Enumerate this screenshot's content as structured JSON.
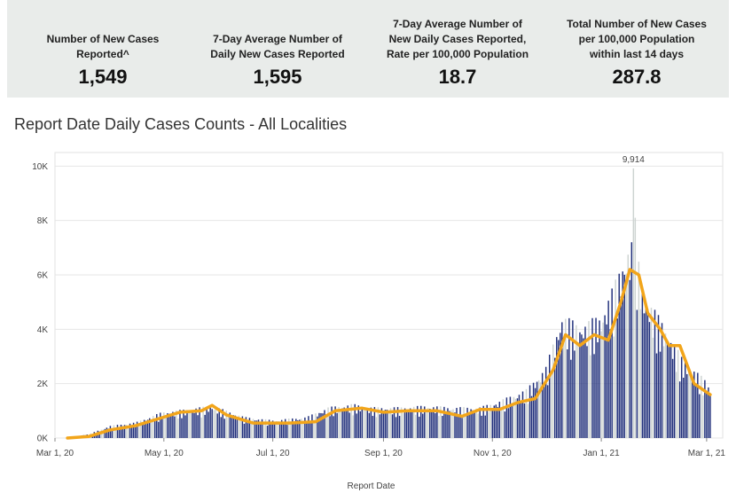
{
  "kpis": [
    {
      "label": "Number of New Cases\nReported^",
      "value": "1,549"
    },
    {
      "label": "7-Day Average Number of\nDaily New Cases Reported",
      "value": "1,595"
    },
    {
      "label": "7-Day Average Number of\nNew Daily Cases Reported,\nRate per 100,000 Population",
      "value": "18.7"
    },
    {
      "label": "Total Number of New Cases\nper 100,000 Population\nwithin last 14 days",
      "value": "287.8"
    }
  ],
  "chart_data": {
    "type": "bar",
    "title": "Report Date Daily Cases Counts - All Localities",
    "xlabel": "Report Date",
    "ylabel": "",
    "x_ticks": [
      "Mar 1, 20",
      "May 1, 20",
      "Jul 1, 20",
      "Sep 1, 20",
      "Nov 1, 20",
      "Jan 1, 21",
      "Mar 1, 21"
    ],
    "y_ticks": [
      "0K",
      "2K",
      "4K",
      "6K",
      "8K",
      "10K"
    ],
    "ylim": [
      0,
      10500
    ],
    "x_range": [
      "2020-03-01",
      "2021-03-10"
    ],
    "annotation": {
      "label": "9,914",
      "date": "2021-01-19",
      "value": 9914
    },
    "colors": {
      "weekday_bar": "#1f2e7a",
      "weekend_bar": "#cdd3d1",
      "average_line": "#f2a51a"
    },
    "series": [
      {
        "name": "",
        "kind": "bar",
        "start_date": "2020-03-08",
        "anchors": [
          [
            "2020-03-08",
            20
          ],
          [
            "2020-03-20",
            120
          ],
          [
            "2020-04-01",
            380
          ],
          [
            "2020-04-15",
            480
          ],
          [
            "2020-04-30",
            800
          ],
          [
            "2020-05-15",
            900
          ],
          [
            "2020-05-28",
            1000
          ],
          [
            "2020-06-05",
            850
          ],
          [
            "2020-06-15",
            650
          ],
          [
            "2020-07-01",
            550
          ],
          [
            "2020-07-20",
            650
          ],
          [
            "2020-08-01",
            950
          ],
          [
            "2020-08-15",
            1050
          ],
          [
            "2020-08-25",
            950
          ],
          [
            "2020-09-10",
            950
          ],
          [
            "2020-09-25",
            1000
          ],
          [
            "2020-10-10",
            950
          ],
          [
            "2020-10-25",
            950
          ],
          [
            "2020-11-05",
            1150
          ],
          [
            "2020-11-20",
            1500
          ],
          [
            "2020-12-01",
            2200
          ],
          [
            "2020-12-10",
            3800
          ],
          [
            "2020-12-20",
            3500
          ],
          [
            "2021-01-01",
            3800
          ],
          [
            "2021-01-10",
            5000
          ],
          [
            "2021-01-19",
            6400
          ],
          [
            "2021-01-25",
            4500
          ],
          [
            "2021-02-05",
            3500
          ],
          [
            "2021-02-15",
            2500
          ],
          [
            "2021-02-28",
            1800
          ],
          [
            "2021-03-03",
            1549
          ]
        ]
      },
      {
        "name": "",
        "kind": "line",
        "points": [
          [
            "2020-03-08",
            0
          ],
          [
            "2020-03-20",
            60
          ],
          [
            "2020-04-01",
            300
          ],
          [
            "2020-04-15",
            450
          ],
          [
            "2020-04-30",
            750
          ],
          [
            "2020-05-10",
            950
          ],
          [
            "2020-05-22",
            1000
          ],
          [
            "2020-05-28",
            1200
          ],
          [
            "2020-06-05",
            850
          ],
          [
            "2020-06-20",
            550
          ],
          [
            "2020-07-10",
            550
          ],
          [
            "2020-07-25",
            600
          ],
          [
            "2020-08-05",
            1000
          ],
          [
            "2020-08-20",
            1100
          ],
          [
            "2020-09-01",
            950
          ],
          [
            "2020-09-15",
            1000
          ],
          [
            "2020-10-01",
            1000
          ],
          [
            "2020-10-15",
            800
          ],
          [
            "2020-10-25",
            1050
          ],
          [
            "2020-11-05",
            1050
          ],
          [
            "2020-11-15",
            1300
          ],
          [
            "2020-11-25",
            1450
          ],
          [
            "2020-12-05",
            2500
          ],
          [
            "2020-12-12",
            3800
          ],
          [
            "2020-12-20",
            3400
          ],
          [
            "2020-12-28",
            3800
          ],
          [
            "2021-01-05",
            3600
          ],
          [
            "2021-01-12",
            5000
          ],
          [
            "2021-01-17",
            6200
          ],
          [
            "2021-01-22",
            6000
          ],
          [
            "2021-01-27",
            4600
          ],
          [
            "2021-02-03",
            4000
          ],
          [
            "2021-02-08",
            3400
          ],
          [
            "2021-02-14",
            3400
          ],
          [
            "2021-02-22",
            2000
          ],
          [
            "2021-03-03",
            1595
          ]
        ]
      }
    ]
  }
}
